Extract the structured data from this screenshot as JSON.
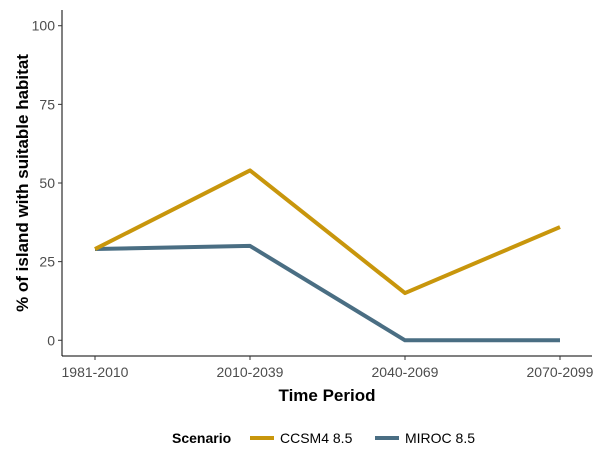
{
  "chart_data": {
    "type": "line",
    "categories": [
      "1981-2010",
      "2010-2039",
      "2040-2069",
      "2070-2099"
    ],
    "series": [
      {
        "name": "CCSM4 8.5",
        "values": [
          29,
          54,
          15,
          36
        ],
        "color": "#C8960C"
      },
      {
        "name": "MIROC 8.5",
        "values": [
          29,
          30,
          0,
          0
        ],
        "color": "#4A6E83"
      }
    ],
    "xlabel": "Time Period",
    "ylabel": "% of island with suitable habitat",
    "ylim": [
      -5,
      105
    ],
    "yticks": [
      0,
      25,
      50,
      75,
      100
    ],
    "grid": false,
    "legend": {
      "title": "Scenario",
      "placement": "bottom"
    }
  }
}
